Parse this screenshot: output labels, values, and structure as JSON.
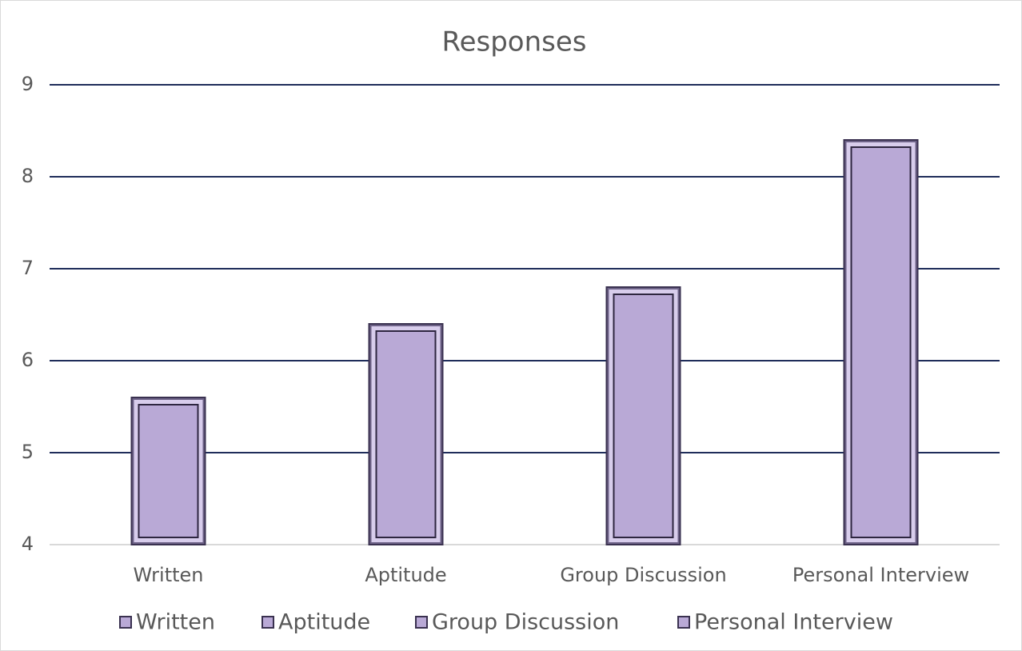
{
  "chart_data": {
    "type": "bar",
    "title": "Responses",
    "categories": [
      "Written",
      "Aptitude",
      "Group Discussion",
      "Personal Interview"
    ],
    "values": [
      5.6,
      6.4,
      6.8,
      8.4
    ],
    "color": "#b9a9d6",
    "ylim": [
      4,
      9
    ],
    "yticks": [
      4,
      5,
      6,
      7,
      8,
      9
    ],
    "grid": true,
    "legend": "bottom"
  }
}
